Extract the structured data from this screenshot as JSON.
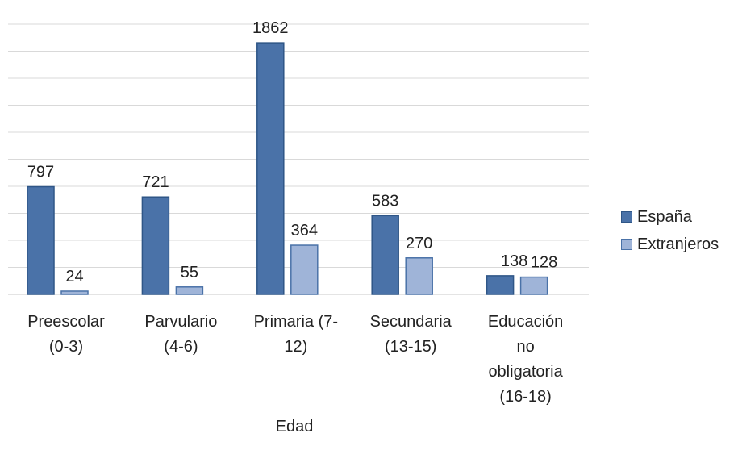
{
  "chart_data": {
    "type": "bar",
    "title": "",
    "xlabel": "Edad",
    "ylabel": "",
    "ylim": [
      0,
      2000
    ],
    "grid": true,
    "legend_position": "right",
    "categories": [
      [
        "Preescolar",
        "(0-3)"
      ],
      [
        "Parvulario",
        "(4-6)"
      ],
      [
        "Primaria (7-",
        "12)"
      ],
      [
        "Secundaria",
        "(13-15)"
      ],
      [
        "Educación",
        "no",
        "obligatoria",
        "(16-18)"
      ]
    ],
    "series": [
      {
        "name": "España",
        "values": [
          797,
          721,
          1862,
          583,
          138
        ],
        "color": "#4a72a8",
        "stroke": "#2f5687"
      },
      {
        "name": "Extranjeros",
        "values": [
          24,
          55,
          364,
          270,
          128
        ],
        "color": "#9fb4d8",
        "stroke": "#4a72a8"
      }
    ]
  }
}
